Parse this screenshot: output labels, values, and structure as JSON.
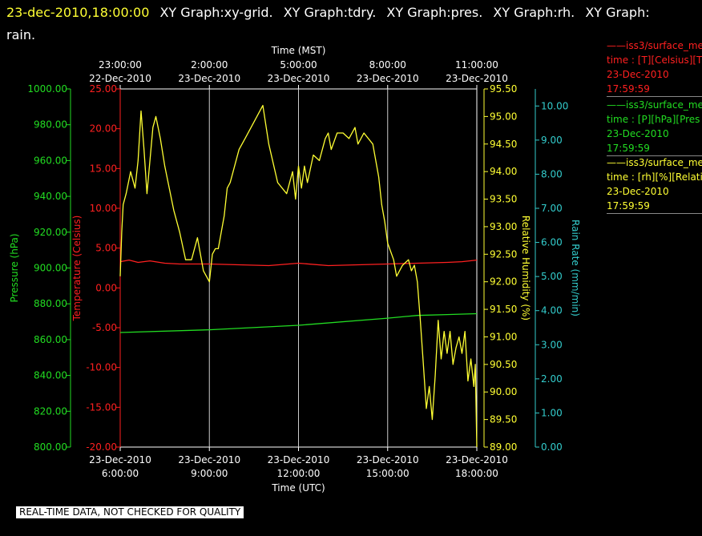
{
  "header": {
    "date": "23-dec-2010,18:00:00",
    "titles": [
      "XY Graph:xy-grid.",
      "XY Graph:tdry.",
      "XY Graph:pres.",
      "XY Graph:rh.",
      "XY Graph:",
      "rain."
    ]
  },
  "colors": {
    "background": "#000000",
    "temperature": "#ff2020",
    "pressure": "#22dd22",
    "humidity": "#ffff33",
    "rain": "#33cccc",
    "grid": "#cccccc"
  },
  "legend": [
    {
      "name": "iss3/surface_me",
      "line2": "time : [T][Celsius][T",
      "line3": "23-Dec-2010",
      "line4": "17:59:59",
      "color": "#ff2020"
    },
    {
      "name": "iss3/surface_me",
      "line2": "time : [P][hPa][Pres",
      "line3": "23-Dec-2010",
      "line4": "17:59:59",
      "color": "#22dd22"
    },
    {
      "name": "iss3/surface_me",
      "line2": "time : [rh][%][Relati",
      "line3": "23-Dec-2010",
      "line4": "17:59:59",
      "color": "#ffff33"
    }
  ],
  "notice": "REAL-TIME DATA, NOT CHECKED FOR QUALITY",
  "chart_data": {
    "type": "line",
    "title": "",
    "x_top_label": "Time (MST)",
    "x_bottom_label": "Time (UTC)",
    "x_range_hours_utc": [
      6,
      18
    ],
    "grid": true,
    "top_ticks": [
      {
        "hour_utc": 6,
        "time": "23:00:00",
        "date": "22-Dec-2010"
      },
      {
        "hour_utc": 9,
        "time": "2:00:00",
        "date": "23-Dec-2010"
      },
      {
        "hour_utc": 12,
        "time": "5:00:00",
        "date": "23-Dec-2010"
      },
      {
        "hour_utc": 15,
        "time": "8:00:00",
        "date": "23-Dec-2010"
      },
      {
        "hour_utc": 18,
        "time": "11:00:00",
        "date": "23-Dec-2010"
      }
    ],
    "bottom_ticks": [
      {
        "hour_utc": 6,
        "time": "6:00:00",
        "date": "23-Dec-2010"
      },
      {
        "hour_utc": 9,
        "time": "9:00:00",
        "date": "23-Dec-2010"
      },
      {
        "hour_utc": 12,
        "time": "12:00:00",
        "date": "23-Dec-2010"
      },
      {
        "hour_utc": 15,
        "time": "15:00:00",
        "date": "23-Dec-2010"
      },
      {
        "hour_utc": 18,
        "time": "18:00:00",
        "date": "23-Dec-2010"
      }
    ],
    "axes": {
      "pressure": {
        "label": "Pressure (hPa)",
        "range": [
          800,
          1000
        ],
        "ticks": [
          "800.00",
          "820.00",
          "840.00",
          "860.00",
          "880.00",
          "900.00",
          "920.00",
          "940.00",
          "960.00",
          "980.00",
          "1000.00"
        ],
        "side": "left-outer"
      },
      "temperature": {
        "label": "Temperature (Celsius)",
        "range": [
          -20,
          25
        ],
        "ticks": [
          "-20.00",
          "-15.00",
          "-10.00",
          "-5.00",
          "0.00",
          "5.00",
          "10.00",
          "15.00",
          "20.00",
          "25.00"
        ],
        "side": "left-inner"
      },
      "humidity": {
        "label": "Relative Humidity (%)",
        "range": [
          89,
          95.5
        ],
        "ticks": [
          "89.00",
          "89.50",
          "90.00",
          "90.50",
          "91.00",
          "91.50",
          "92.00",
          "92.50",
          "93.00",
          "93.50",
          "94.00",
          "94.50",
          "95.00",
          "95.50"
        ],
        "side": "right-inner"
      },
      "rain": {
        "label": "Rain Rate (mm/min)",
        "range": [
          0,
          10.5
        ],
        "ticks": [
          "0.00",
          "1.00",
          "2.00",
          "3.00",
          "4.00",
          "5.00",
          "6.00",
          "7.00",
          "8.00",
          "9.00",
          "10.00"
        ],
        "side": "right-outer"
      }
    },
    "series": [
      {
        "name": "temperature",
        "axis": "temperature",
        "x": [
          6.0,
          6.3,
          6.6,
          7.0,
          7.5,
          8.0,
          9.0,
          10.0,
          11.0,
          12.0,
          13.0,
          14.0,
          15.0,
          16.0,
          17.0,
          17.5,
          18.0
        ],
        "values": [
          3.3,
          3.5,
          3.2,
          3.4,
          3.1,
          3.0,
          3.0,
          2.9,
          2.8,
          3.1,
          2.8,
          2.9,
          3.0,
          3.1,
          3.2,
          3.3,
          3.5
        ]
      },
      {
        "name": "pressure",
        "axis": "pressure",
        "x": [
          6.0,
          9.0,
          12.0,
          15.0,
          16.0,
          17.0,
          18.0
        ],
        "values": [
          864.0,
          865.5,
          868.0,
          872.0,
          873.5,
          874.0,
          874.5
        ]
      },
      {
        "name": "humidity",
        "axis": "humidity",
        "x": [
          6.0,
          6.05,
          6.1,
          6.2,
          6.35,
          6.5,
          6.6,
          6.7,
          6.8,
          6.9,
          7.0,
          7.1,
          7.2,
          7.35,
          7.5,
          7.65,
          7.8,
          8.0,
          8.2,
          8.4,
          8.5,
          8.6,
          8.8,
          9.0,
          9.1,
          9.2,
          9.3,
          9.5,
          9.6,
          9.7,
          9.8,
          10.0,
          10.2,
          10.5,
          10.8,
          11.0,
          11.3,
          11.6,
          11.8,
          11.9,
          12.0,
          12.1,
          12.2,
          12.3,
          12.5,
          12.7,
          12.9,
          13.0,
          13.1,
          13.3,
          13.5,
          13.7,
          13.9,
          14.0,
          14.2,
          14.5,
          14.7,
          14.8,
          14.9,
          15.0,
          15.2,
          15.3,
          15.5,
          15.7,
          15.8,
          15.9,
          16.0,
          16.1,
          16.2,
          16.3,
          16.4,
          16.5,
          16.6,
          16.7,
          16.8,
          16.9,
          17.0,
          17.1,
          17.2,
          17.3,
          17.4,
          17.5,
          17.6,
          17.7,
          17.8,
          17.9,
          17.95,
          18.0
        ],
        "values": [
          92.1,
          92.9,
          93.4,
          93.6,
          94.0,
          93.7,
          94.2,
          95.1,
          94.4,
          93.6,
          94.2,
          94.8,
          95.0,
          94.6,
          94.1,
          93.7,
          93.3,
          92.9,
          92.4,
          92.4,
          92.6,
          92.8,
          92.2,
          92.0,
          92.5,
          92.6,
          92.6,
          93.2,
          93.7,
          93.8,
          94.0,
          94.4,
          94.6,
          94.9,
          95.2,
          94.5,
          93.8,
          93.6,
          94.0,
          93.5,
          94.1,
          93.7,
          94.1,
          93.8,
          94.3,
          94.2,
          94.6,
          94.7,
          94.4,
          94.7,
          94.7,
          94.6,
          94.8,
          94.5,
          94.7,
          94.5,
          93.9,
          93.4,
          93.1,
          92.7,
          92.4,
          92.1,
          92.3,
          92.4,
          92.2,
          92.3,
          92.0,
          91.3,
          90.5,
          89.7,
          90.1,
          89.5,
          90.3,
          91.3,
          90.6,
          91.1,
          90.7,
          91.1,
          90.5,
          90.8,
          91.0,
          90.7,
          91.1,
          90.2,
          90.6,
          90.1,
          90.5,
          89.0
        ]
      }
    ]
  }
}
